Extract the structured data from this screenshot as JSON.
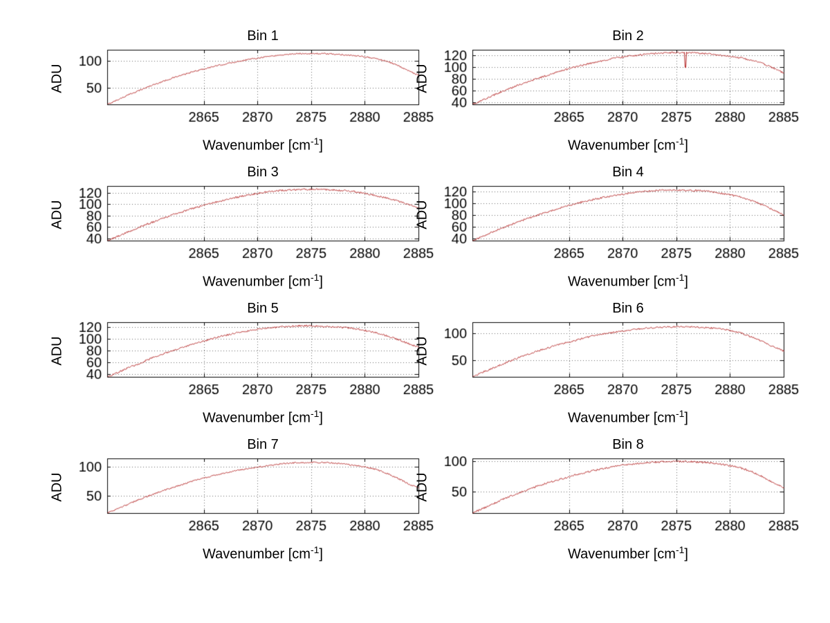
{
  "figure": {
    "background": "#ffffff",
    "line_color": "#b22222",
    "grid_color": "#666666",
    "axis_color": "#000000"
  },
  "chart_data": [
    {
      "type": "line",
      "title": "Bin 1",
      "ylabel": "ADU",
      "xlabel": {
        "base": "Wavenumber [cm",
        "sup": "-1",
        "close": "]"
      },
      "xlim": [
        2856,
        2885
      ],
      "ylim": [
        20,
        120
      ],
      "xticks": [
        2865,
        2870,
        2875,
        2880,
        2885
      ],
      "yticks": [
        50,
        100
      ],
      "x_start": 2856,
      "x_step": 1,
      "noise": 1.2,
      "y": [
        20,
        29,
        38,
        46,
        54,
        61,
        68,
        74,
        80,
        85,
        90,
        94,
        98,
        102,
        105,
        108,
        110,
        112,
        113,
        113,
        113,
        112,
        111,
        109,
        107,
        104,
        99,
        92,
        82,
        73
      ]
    },
    {
      "type": "line",
      "title": "Bin 2",
      "ylabel": "ADU",
      "xlabel": {
        "base": "Wavenumber [cm",
        "sup": "-1",
        "close": "]"
      },
      "xlim": [
        2856,
        2885
      ],
      "ylim": [
        37,
        130
      ],
      "xticks": [
        2865,
        2870,
        2875,
        2880,
        2885
      ],
      "yticks": [
        40,
        60,
        80,
        100,
        120
      ],
      "x_start": 2856,
      "x_step": 1,
      "noise": 1.5,
      "spike": {
        "x": 2875.8,
        "dy": -26
      },
      "y": [
        37,
        45,
        53,
        61,
        68,
        75,
        81,
        87,
        93,
        98,
        103,
        107,
        111,
        115,
        118,
        120,
        122,
        124,
        125,
        125,
        125,
        124,
        123,
        121,
        119,
        116,
        112,
        107,
        99,
        90
      ]
    },
    {
      "type": "line",
      "title": "Bin 3",
      "ylabel": "ADU",
      "xlabel": {
        "base": "Wavenumber [cm",
        "sup": "-1",
        "close": "]"
      },
      "xlim": [
        2856,
        2885
      ],
      "ylim": [
        36,
        132
      ],
      "xticks": [
        2865,
        2870,
        2875,
        2880,
        2885
      ],
      "yticks": [
        40,
        60,
        80,
        100,
        120
      ],
      "x_start": 2856,
      "x_step": 1,
      "noise": 1.5,
      "y": [
        36,
        44,
        52,
        60,
        67,
        74,
        81,
        87,
        93,
        98,
        103,
        108,
        112,
        116,
        119,
        122,
        124,
        125,
        126,
        126,
        126,
        125,
        124,
        122,
        119,
        115,
        111,
        106,
        100,
        94
      ]
    },
    {
      "type": "line",
      "title": "Bin 4",
      "ylabel": "ADU",
      "xlabel": {
        "base": "Wavenumber [cm",
        "sup": "-1",
        "close": "]"
      },
      "xlim": [
        2856,
        2885
      ],
      "ylim": [
        37,
        130
      ],
      "xticks": [
        2865,
        2870,
        2875,
        2880,
        2885
      ],
      "yticks": [
        40,
        60,
        80,
        100,
        120
      ],
      "x_start": 2856,
      "x_step": 1,
      "noise": 1.5,
      "y": [
        37,
        45,
        53,
        60,
        67,
        74,
        80,
        86,
        92,
        97,
        102,
        106,
        110,
        113,
        116,
        119,
        121,
        122,
        123,
        123,
        123,
        122,
        121,
        118,
        115,
        111,
        105,
        98,
        89,
        80
      ]
    },
    {
      "type": "line",
      "title": "Bin 5",
      "ylabel": "ADU",
      "xlabel": {
        "base": "Wavenumber [cm",
        "sup": "-1",
        "close": "]"
      },
      "xlim": [
        2856,
        2885
      ],
      "ylim": [
        35,
        128
      ],
      "xticks": [
        2865,
        2870,
        2875,
        2880,
        2885
      ],
      "yticks": [
        40,
        60,
        80,
        100,
        120
      ],
      "x_start": 2856,
      "x_step": 1,
      "noise": 1.5,
      "y": [
        35,
        43,
        51,
        58,
        66,
        73,
        79,
        85,
        91,
        96,
        101,
        106,
        110,
        113,
        116,
        118,
        120,
        121,
        122,
        122,
        121,
        120,
        119,
        117,
        114,
        110,
        105,
        99,
        92,
        85
      ]
    },
    {
      "type": "line",
      "title": "Bin 6",
      "ylabel": "ADU",
      "xlabel": {
        "base": "Wavenumber [cm",
        "sup": "-1",
        "close": "]"
      },
      "xlim": [
        2856,
        2885
      ],
      "ylim": [
        20,
        120
      ],
      "xticks": [
        2865,
        2870,
        2875,
        2880,
        2885
      ],
      "yticks": [
        50,
        100
      ],
      "x_start": 2856,
      "x_step": 1,
      "noise": 1.5,
      "y": [
        20,
        29,
        37,
        45,
        53,
        60,
        67,
        73,
        79,
        84,
        89,
        94,
        98,
        101,
        104,
        107,
        109,
        110,
        111,
        112,
        112,
        111,
        110,
        108,
        105,
        100,
        93,
        85,
        75,
        67
      ]
    },
    {
      "type": "line",
      "title": "Bin 7",
      "ylabel": "ADU",
      "xlabel": {
        "base": "Wavenumber [cm",
        "sup": "-1",
        "close": "]"
      },
      "xlim": [
        2856,
        2885
      ],
      "ylim": [
        20,
        115
      ],
      "xticks": [
        2865,
        2870,
        2875,
        2880,
        2885
      ],
      "yticks": [
        50,
        100
      ],
      "x_start": 2856,
      "x_step": 1,
      "noise": 1.2,
      "y": [
        20,
        28,
        36,
        44,
        51,
        58,
        64,
        70,
        76,
        81,
        86,
        90,
        94,
        97,
        100,
        103,
        105,
        107,
        108,
        108,
        108,
        107,
        105,
        103,
        100,
        96,
        89,
        81,
        71,
        64
      ]
    },
    {
      "type": "line",
      "title": "Bin 8",
      "ylabel": "ADU",
      "xlabel": {
        "base": "Wavenumber [cm",
        "sup": "-1",
        "close": "]"
      },
      "xlim": [
        2856,
        2885
      ],
      "ylim": [
        15,
        105
      ],
      "xticks": [
        2865,
        2870,
        2875,
        2880,
        2885
      ],
      "yticks": [
        50,
        100
      ],
      "x_start": 2856,
      "x_step": 1,
      "noise": 1.5,
      "y": [
        15,
        23,
        31,
        39,
        46,
        53,
        59,
        65,
        70,
        75,
        80,
        84,
        88,
        91,
        94,
        96,
        98,
        99,
        100,
        100,
        100,
        99,
        98,
        96,
        93,
        89,
        83,
        75,
        65,
        56
      ]
    }
  ]
}
